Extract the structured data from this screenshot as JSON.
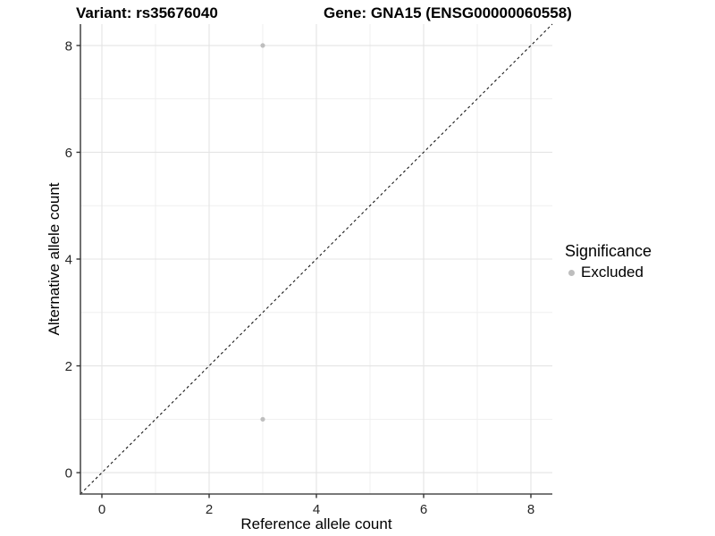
{
  "chart_data": {
    "type": "scatter",
    "title_left": "Variant: rs35676040",
    "title_right": "Gene: GNA15 (ENSG00000060558)",
    "xlabel": "Reference allele count",
    "ylabel": "Alternative allele count",
    "xlim": [
      -0.4,
      8.4
    ],
    "ylim": [
      -0.4,
      8.4
    ],
    "x_major_ticks": [
      0,
      2,
      4,
      6,
      8
    ],
    "y_major_ticks": [
      0,
      2,
      4,
      6,
      8
    ],
    "x_minor_gridlines": [
      1,
      3,
      5,
      7
    ],
    "y_minor_gridlines": [
      1,
      3,
      5,
      7
    ],
    "grid": "on",
    "legend_position": "right",
    "reference_line": {
      "equation": "y = x",
      "style": "dashed",
      "color": "#1a1a1a"
    },
    "series": [
      {
        "name": "Excluded",
        "marker": "circle",
        "color": "#bebebe",
        "points": [
          {
            "x": 3,
            "y": 8
          },
          {
            "x": 3,
            "y": 1
          }
        ]
      }
    ],
    "legend": {
      "title": "Significance",
      "items": [
        {
          "label": "Excluded",
          "color": "#bebebe"
        }
      ]
    }
  },
  "colors": {
    "background": "#ffffff",
    "major_gridline": "#e4e4e4",
    "minor_gridline": "#efefef",
    "axis_line": "#4d4d4d",
    "tick_mark": "#333333",
    "tick_label": "#262626",
    "point": "#bebebe",
    "reference_line": "#1a1a1a"
  }
}
